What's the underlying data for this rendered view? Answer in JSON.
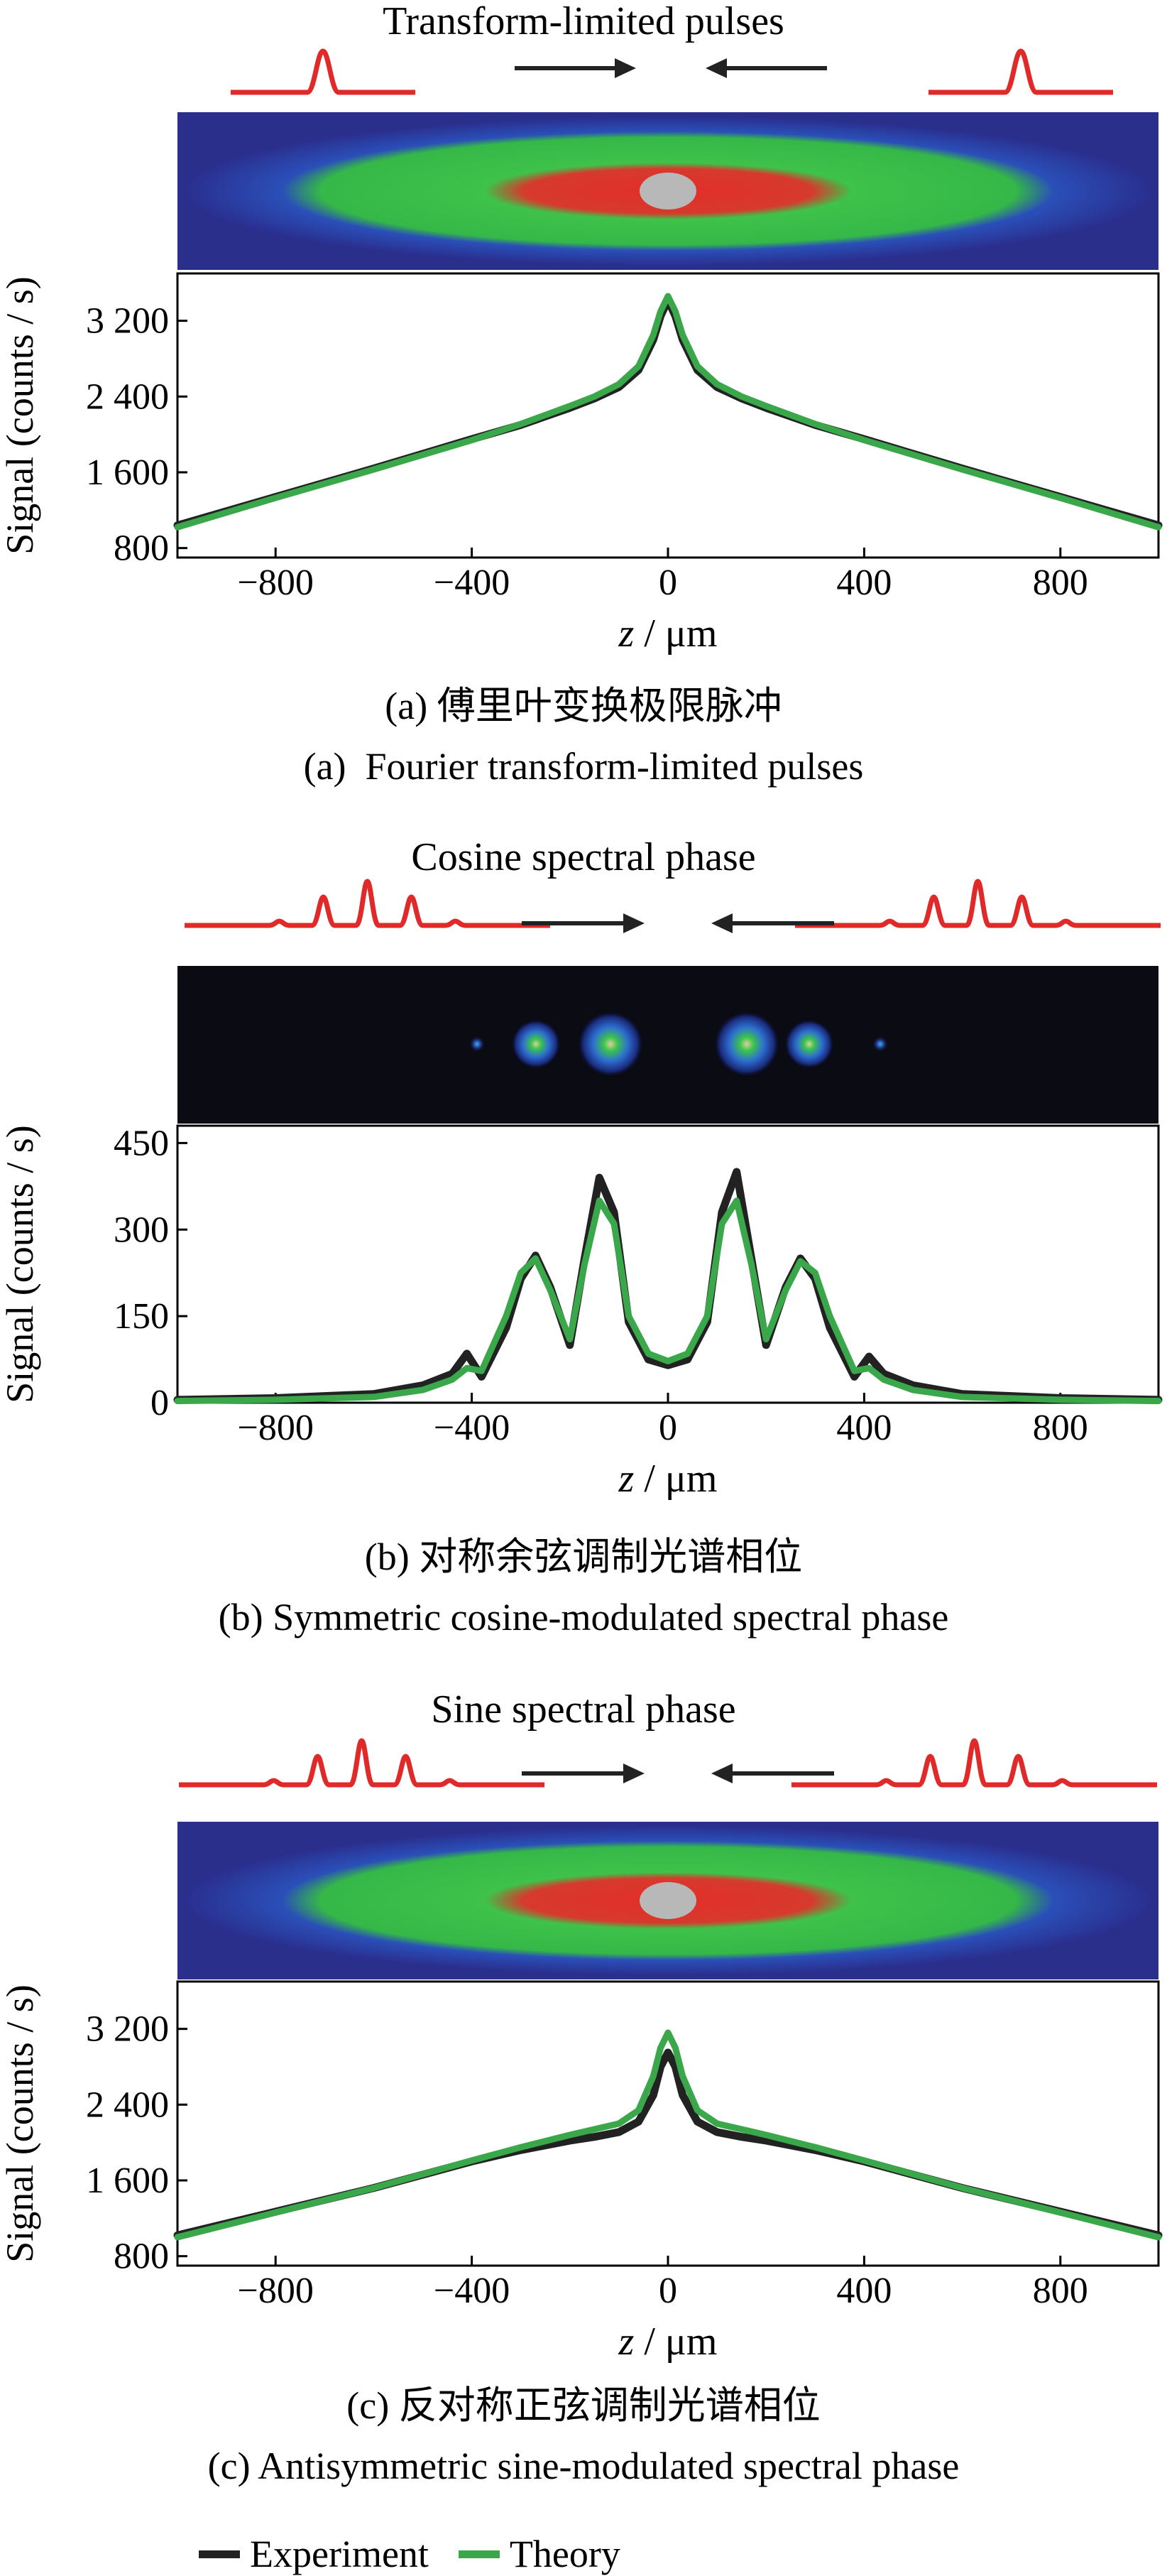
{
  "figure": {
    "legend": [
      {
        "name": "Experiment",
        "color": "#222222"
      },
      {
        "name": "Theory",
        "color": "#3aa84a"
      }
    ]
  },
  "chart_data": [
    {
      "type": "line",
      "panel": "a",
      "top_title": "Transform-limited pulses",
      "caption_cn": "(a) 傅里叶变换极限脉冲",
      "caption_en": "(a)  Fourier transform-limited pulses",
      "xlabel_italic": "z",
      "xlabel_rest": " / μm",
      "ylabel": "Signal (counts / s)",
      "xlim": [
        -1000,
        1000
      ],
      "ylim": [
        700,
        3700
      ],
      "x_ticks": [
        -800,
        -400,
        0,
        400,
        800
      ],
      "x_tick_labels": [
        "−800",
        "−400",
        "0",
        "400",
        "800"
      ],
      "y_ticks": [
        800,
        1600,
        2400,
        3200
      ],
      "y_tick_labels": [
        "800",
        "1 600",
        "2 400",
        "3 200"
      ],
      "pulse_type": "single",
      "image_type": "spread",
      "series": [
        {
          "name": "Experiment",
          "color": "#222222",
          "x": [
            -1000,
            -800,
            -600,
            -400,
            -300,
            -200,
            -150,
            -100,
            -60,
            -30,
            -15,
            0,
            15,
            30,
            60,
            100,
            150,
            200,
            300,
            400,
            600,
            800,
            1000
          ],
          "y": [
            1040,
            1340,
            1640,
            1950,
            2100,
            2280,
            2380,
            2500,
            2680,
            3000,
            3250,
            3420,
            3250,
            3000,
            2680,
            2500,
            2380,
            2280,
            2100,
            1950,
            1640,
            1340,
            1040
          ]
        },
        {
          "name": "Theory",
          "color": "#3aa84a",
          "x": [
            -1000,
            -800,
            -600,
            -400,
            -300,
            -200,
            -150,
            -100,
            -60,
            -30,
            -15,
            0,
            15,
            30,
            60,
            100,
            150,
            200,
            300,
            400,
            600,
            800,
            1000
          ],
          "y": [
            1020,
            1330,
            1630,
            1940,
            2110,
            2300,
            2400,
            2530,
            2720,
            3050,
            3300,
            3460,
            3300,
            3050,
            2720,
            2530,
            2400,
            2300,
            2110,
            1940,
            1630,
            1330,
            1020
          ]
        }
      ]
    },
    {
      "type": "line",
      "panel": "b",
      "top_title": "Cosine spectral phase",
      "caption_cn": "(b) 对称余弦调制光谱相位",
      "caption_en": "(b) Symmetric cosine-modulated spectral phase",
      "xlabel_italic": "z",
      "xlabel_rest": " / μm",
      "ylabel": "Signal (counts / s)",
      "xlim": [
        -1000,
        1000
      ],
      "ylim": [
        0,
        480
      ],
      "x_ticks": [
        -800,
        -400,
        0,
        400,
        800
      ],
      "x_tick_labels": [
        "−800",
        "−400",
        "0",
        "400",
        "800"
      ],
      "y_ticks": [
        0,
        150,
        300,
        450
      ],
      "y_tick_labels": [
        "0",
        "150",
        "300",
        "450"
      ],
      "pulse_type": "triple",
      "image_type": "spots",
      "series": [
        {
          "name": "Experiment",
          "color": "#222222",
          "x": [
            -1000,
            -800,
            -600,
            -500,
            -440,
            -410,
            -380,
            -330,
            -300,
            -270,
            -240,
            -200,
            -170,
            -140,
            -110,
            -80,
            -40,
            0,
            40,
            80,
            110,
            140,
            170,
            200,
            240,
            270,
            300,
            330,
            380,
            410,
            440,
            500,
            600,
            800,
            1000
          ],
          "y": [
            5,
            8,
            15,
            30,
            50,
            85,
            45,
            130,
            215,
            255,
            200,
            100,
            250,
            390,
            330,
            140,
            75,
            65,
            75,
            140,
            330,
            400,
            250,
            100,
            200,
            250,
            215,
            130,
            45,
            80,
            50,
            30,
            15,
            8,
            5
          ]
        },
        {
          "name": "Theory",
          "color": "#3aa84a",
          "x": [
            -1000,
            -800,
            -600,
            -500,
            -440,
            -410,
            -380,
            -330,
            -300,
            -270,
            -240,
            -200,
            -170,
            -140,
            -110,
            -80,
            -40,
            0,
            40,
            80,
            110,
            140,
            170,
            200,
            240,
            270,
            300,
            330,
            380,
            410,
            440,
            500,
            600,
            800,
            1000
          ],
          "y": [
            3,
            5,
            10,
            22,
            40,
            60,
            55,
            150,
            225,
            250,
            195,
            110,
            240,
            350,
            310,
            150,
            85,
            72,
            85,
            150,
            310,
            350,
            240,
            110,
            195,
            245,
            225,
            150,
            55,
            60,
            40,
            22,
            10,
            5,
            3
          ]
        }
      ]
    },
    {
      "type": "line",
      "panel": "c",
      "top_title": "Sine spectral phase",
      "caption_cn": "(c) 反对称正弦调制光谱相位",
      "caption_en": "(c) Antisymmetric sine-modulated spectral phase",
      "xlabel_italic": "z",
      "xlabel_rest": " / μm",
      "ylabel": "Signal (counts / s)",
      "xlim": [
        -1000,
        1000
      ],
      "ylim": [
        700,
        3700
      ],
      "x_ticks": [
        -800,
        -400,
        0,
        400,
        800
      ],
      "x_tick_labels": [
        "−800",
        "−400",
        "0",
        "400",
        "800"
      ],
      "y_ticks": [
        800,
        1600,
        2400,
        3200
      ],
      "y_tick_labels": [
        "800",
        "1 600",
        "2 400",
        "3 200"
      ],
      "pulse_type": "triple",
      "image_type": "spread",
      "series": [
        {
          "name": "Experiment",
          "color": "#222222",
          "x": [
            -1000,
            -800,
            -600,
            -400,
            -300,
            -200,
            -150,
            -100,
            -60,
            -30,
            -15,
            0,
            15,
            30,
            60,
            100,
            150,
            200,
            300,
            400,
            600,
            800,
            1000
          ],
          "y": [
            1020,
            1270,
            1520,
            1800,
            1920,
            2020,
            2060,
            2110,
            2220,
            2500,
            2800,
            2950,
            2800,
            2500,
            2220,
            2110,
            2060,
            2020,
            1920,
            1800,
            1520,
            1270,
            1020
          ]
        },
        {
          "name": "Theory",
          "color": "#3aa84a",
          "x": [
            -1000,
            -800,
            -600,
            -400,
            -300,
            -200,
            -150,
            -100,
            -60,
            -30,
            -15,
            0,
            15,
            30,
            60,
            100,
            150,
            200,
            300,
            400,
            600,
            800,
            1000
          ],
          "y": [
            1000,
            1260,
            1520,
            1810,
            1950,
            2080,
            2140,
            2200,
            2340,
            2700,
            3000,
            3160,
            3000,
            2700,
            2340,
            2200,
            2140,
            2080,
            1950,
            1810,
            1520,
            1260,
            1000
          ]
        }
      ]
    }
  ]
}
